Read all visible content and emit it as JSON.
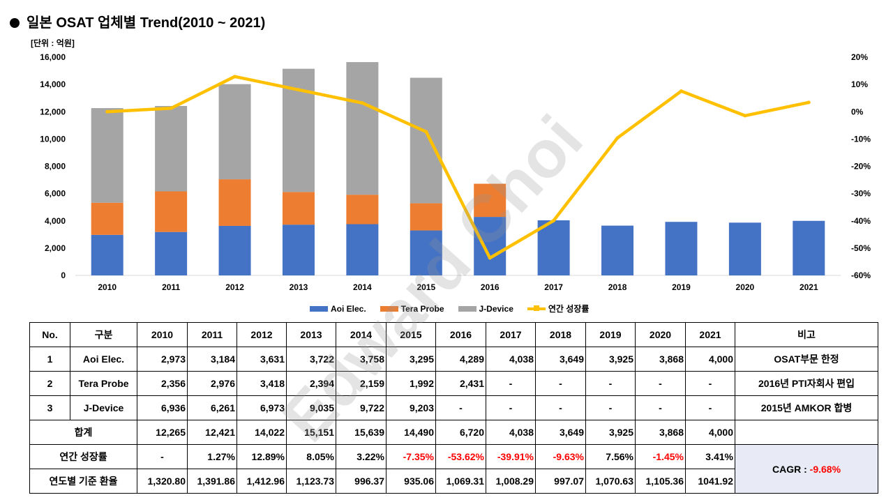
{
  "title": "일본 OSAT 업체별 Trend(2010  ~  2021)",
  "unit_label": "[단위 : 억원]",
  "watermark": "Edward Choi",
  "colors": {
    "aoi": "#4472C4",
    "tera": "#ED7D31",
    "jdevice": "#A5A5A5",
    "growth": "#FFC000",
    "negative": "#FF0000",
    "cagr_bg": "#E8EBF5"
  },
  "chart_data": {
    "type": "bar",
    "stacked": true,
    "categories": [
      "2010",
      "2011",
      "2012",
      "2013",
      "2014",
      "2015",
      "2016",
      "2017",
      "2018",
      "2019",
      "2020",
      "2021"
    ],
    "series": [
      {
        "name": "Aoi Elec.",
        "type": "bar",
        "values": [
          2973,
          3184,
          3631,
          3722,
          3758,
          3295,
          4289,
          4038,
          3649,
          3925,
          3868,
          4000
        ]
      },
      {
        "name": "Tera Probe",
        "type": "bar",
        "values": [
          2356,
          2976,
          3418,
          2394,
          2159,
          1992,
          2431,
          0,
          0,
          0,
          0,
          0
        ]
      },
      {
        "name": "J-Device",
        "type": "bar",
        "values": [
          6936,
          6261,
          6973,
          9035,
          9722,
          9203,
          0,
          0,
          0,
          0,
          0,
          0
        ]
      },
      {
        "name": "연간 성장률",
        "type": "line",
        "axis": "right",
        "values": [
          0,
          1.27,
          12.89,
          8.05,
          3.22,
          -7.35,
          -53.62,
          -39.91,
          -9.63,
          7.56,
          -1.45,
          3.41
        ]
      }
    ],
    "y_left": {
      "min": 0,
      "max": 16000,
      "ticks": [
        "0",
        "2,000",
        "4,000",
        "6,000",
        "8,000",
        "10,000",
        "12,000",
        "14,000",
        "16,000"
      ]
    },
    "y_right": {
      "min": -60,
      "max": 20,
      "ticks": [
        "-60%",
        "-50%",
        "-40%",
        "-30%",
        "-20%",
        "-10%",
        "0%",
        "10%",
        "20%"
      ]
    },
    "legend": [
      "Aoi Elec.",
      "Tera Probe",
      "J-Device",
      "연간 성장률"
    ],
    "legend_position": "bottom",
    "grid": false
  },
  "table": {
    "header": [
      "No.",
      "구분",
      "2010",
      "2011",
      "2012",
      "2013",
      "2014",
      "2015",
      "2016",
      "2017",
      "2018",
      "2019",
      "2020",
      "2021",
      "비고"
    ],
    "rows": [
      {
        "no": "1",
        "name": "Aoi Elec.",
        "values": [
          "2,973",
          "3,184",
          "3,631",
          "3,722",
          "3,758",
          "3,295",
          "4,289",
          "4,038",
          "3,649",
          "3,925",
          "3,868",
          "4,000"
        ],
        "note": "OSAT부문 한정"
      },
      {
        "no": "2",
        "name": "Tera Probe",
        "values": [
          "2,356",
          "2,976",
          "3,418",
          "2,394",
          "2,159",
          "1,992",
          "2,431",
          "-",
          "-",
          "-",
          "-",
          "-"
        ],
        "note": "2016년 PTI자회사 편입"
      },
      {
        "no": "3",
        "name": "J-Device",
        "values": [
          "6,936",
          "6,261",
          "6,973",
          "9,035",
          "9,722",
          "9,203",
          "-",
          "-",
          "-",
          "-",
          "-",
          "-"
        ],
        "note": "2015년 AMKOR 합병"
      }
    ],
    "total": {
      "label": "합계",
      "values": [
        "12,265",
        "12,421",
        "14,022",
        "15,151",
        "15,639",
        "14,490",
        "6,720",
        "4,038",
        "3,649",
        "3,925",
        "3,868",
        "4,000"
      ]
    },
    "growth": {
      "label": "연간 성장률",
      "values": [
        "-",
        "1.27%",
        "12.89%",
        "8.05%",
        "3.22%",
        "-7.35%",
        "-53.62%",
        "-39.91%",
        "-9.63%",
        "7.56%",
        "-1.45%",
        "3.41%"
      ],
      "negative": [
        false,
        false,
        false,
        false,
        false,
        true,
        true,
        true,
        true,
        false,
        true,
        false
      ]
    },
    "fx": {
      "label": "연도별 기준 환율",
      "values": [
        "1,320.80",
        "1,391.86",
        "1,412.96",
        "1,123.73",
        "996.37",
        "935.06",
        "1,069.31",
        "1,008.29",
        "997.07",
        "1,070.63",
        "1,105.36",
        "1041.92"
      ]
    },
    "cagr": {
      "label": "CAGR : ",
      "value": "-9.68%"
    }
  }
}
